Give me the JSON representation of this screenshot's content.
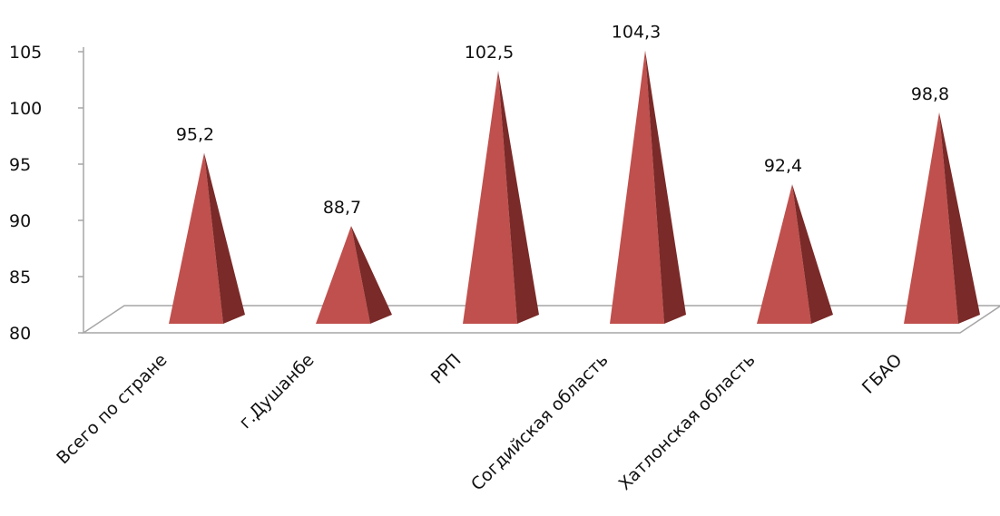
{
  "chart_data": {
    "type": "bar",
    "bar_shape": "pyramid",
    "categories": [
      "Всего по стране",
      "г.Душанбе",
      "РРП",
      "Согдийская область",
      "Хатлонская область",
      "ГБАО"
    ],
    "values": [
      95.2,
      88.7,
      102.5,
      104.3,
      92.4,
      98.8
    ],
    "data_labels": [
      "95,2",
      "88,7",
      "102,5",
      "104,3",
      "92,4",
      "98,8"
    ],
    "ylim": [
      80,
      105
    ],
    "y_ticks": [
      80,
      85,
      90,
      95,
      100,
      105
    ],
    "y_tick_labels": [
      "80",
      "85",
      "90",
      "95",
      "100",
      "105"
    ],
    "grid": false,
    "legend": "none",
    "title": "",
    "xlabel": "",
    "ylabel": "",
    "colors": {
      "front": "#c0504d",
      "side": "#7a2a28",
      "axis": "#a6a6a6"
    }
  }
}
